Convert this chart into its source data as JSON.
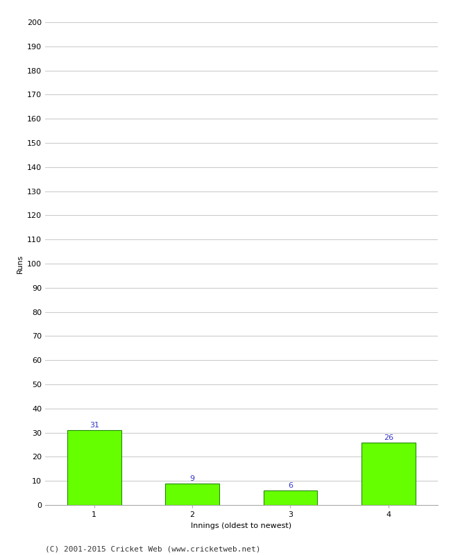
{
  "categories": [
    "1",
    "2",
    "3",
    "4"
  ],
  "values": [
    31,
    9,
    6,
    26
  ],
  "bar_color": "#66ff00",
  "bar_edge_color": "#228800",
  "label_color": "#3333cc",
  "ylabel": "Runs",
  "xlabel": "Innings (oldest to newest)",
  "ylim": [
    0,
    200
  ],
  "yticks": [
    0,
    10,
    20,
    30,
    40,
    50,
    60,
    70,
    80,
    90,
    100,
    110,
    120,
    130,
    140,
    150,
    160,
    170,
    180,
    190,
    200
  ],
  "grid_color": "#cccccc",
  "background_color": "#ffffff",
  "footer_text": "(C) 2001-2015 Cricket Web (www.cricketweb.net)",
  "ylabel_fontsize": 8,
  "xlabel_fontsize": 8,
  "tick_fontsize": 8,
  "label_fontsize": 8,
  "footer_fontsize": 8
}
